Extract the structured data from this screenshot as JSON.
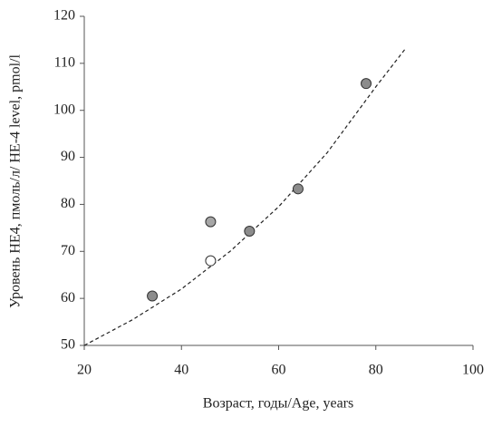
{
  "chart_data": {
    "type": "scatter",
    "x_label": "Возраст, годы/Age, years",
    "y_label": "Уровень HE4, пмоль/л/ HE-4 level, pmol/l",
    "x": [
      34,
      46,
      46,
      54,
      64,
      78
    ],
    "values": [
      60.5,
      76.3,
      68,
      74.3,
      83.3,
      105.7
    ],
    "colors": [
      "#8c8c8c",
      "#a6a6a6",
      "#ffffff",
      "#8c8c8c",
      "#8c8c8c",
      "#8c8c8c"
    ],
    "trend": {
      "x": [
        20,
        30,
        40,
        50,
        60,
        70,
        80,
        86
      ],
      "values": [
        50,
        55.5,
        62,
        70,
        79.5,
        91,
        105,
        113
      ],
      "color": "#222222"
    },
    "xlim": [
      20,
      100
    ],
    "ylim": [
      50,
      120
    ],
    "xticks": [
      20,
      40,
      60,
      80,
      100
    ],
    "yticks": [
      50,
      60,
      70,
      80,
      90,
      100,
      110,
      120
    ],
    "grid": false
  }
}
